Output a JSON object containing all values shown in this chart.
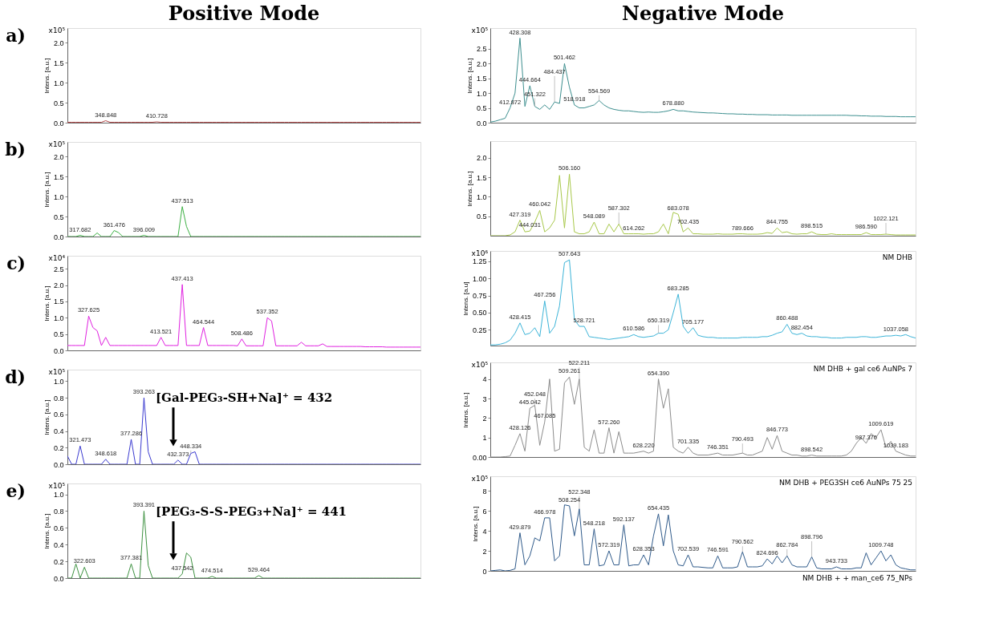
{
  "chart_data": [
    {
      "type": "line",
      "title": "Positive Mode",
      "ylabel": "Intens. [a.u.]",
      "color": "#b34a4a",
      "tick_labels": "y",
      "ylim": [
        0,
        2.37
      ],
      "yticks": [
        {
          "value": 0,
          "label": "0.0"
        },
        {
          "value": 0.5,
          "label": "0.5"
        },
        {
          "value": 1,
          "label": "1.0"
        },
        {
          "value": 1.5,
          "label": "1.5"
        },
        {
          "value": 2,
          "label": "2.0"
        }
      ],
      "values": [
        0.01,
        0.01,
        0.01,
        0.01,
        0.01,
        0.01,
        0.01,
        0.01,
        0.01,
        0.05,
        0.01,
        0.01,
        0.01,
        0.01,
        0.01,
        0.01,
        0.01,
        0.01,
        0.01,
        0.01,
        0.01,
        0.02,
        0.01,
        0.01,
        0.01,
        0.01,
        0.01,
        0.01,
        0.01,
        0.01,
        0.01,
        0.01,
        0.01,
        0.01,
        0.01,
        0.01,
        0.01,
        0.01,
        0.01,
        0.01,
        0.01,
        0.01,
        0.01,
        0.01,
        0.01,
        0.01,
        0.01,
        0.01,
        0.01,
        0.01,
        0.01,
        0.01,
        0.01,
        0.01,
        0.01,
        0.01,
        0.01,
        0.01,
        0.01,
        0.01,
        0.01,
        0.01,
        0.01,
        0.01,
        0.01,
        0.01,
        0.01,
        0.01,
        0.01,
        0.01,
        0.01,
        0.01,
        0.01,
        0.01,
        0.01,
        0.01,
        0.01,
        0.01,
        0.01,
        0.01,
        0.01,
        0.01,
        0.01,
        0.01
      ],
      "categories": [
        null,
        null,
        null,
        null,
        null,
        null,
        null,
        null,
        null,
        "348.848",
        null,
        null,
        null,
        null,
        null,
        null,
        null,
        null,
        null,
        null,
        null,
        "410.728",
        null,
        null,
        null,
        null,
        null,
        null,
        null,
        null,
        null,
        null,
        null,
        null,
        null,
        null,
        null,
        null,
        null,
        null,
        null,
        null,
        null,
        null,
        null,
        null,
        null,
        null,
        null,
        null,
        null,
        null,
        null,
        null,
        null,
        null,
        null,
        null,
        null,
        null,
        null,
        null,
        null,
        null,
        null,
        null,
        null,
        null,
        null,
        null,
        null,
        null,
        null,
        null,
        null,
        null,
        null,
        null,
        null,
        null,
        null,
        null,
        null,
        null
      ],
      "annotations": [
        "a)",
        "x10⁵"
      ]
    },
    {
      "type": "line",
      "ylabel": "Intens. [a.u.]",
      "color": "#3cb043",
      "tick_labels": "y",
      "ylim": [
        0,
        2.37
      ],
      "yticks": [
        {
          "value": 0,
          "label": "0.0"
        },
        {
          "value": 0.5,
          "label": "0.5"
        },
        {
          "value": 1,
          "label": "1.0"
        },
        {
          "value": 1.5,
          "label": "1.5"
        },
        {
          "value": 2,
          "label": "2.0"
        }
      ],
      "values": [
        0,
        0,
        0,
        0.03,
        0,
        0,
        0,
        0.09,
        0,
        0,
        0,
        0.15,
        0.1,
        0,
        0,
        0,
        0,
        0,
        0.03,
        0,
        0,
        0,
        0,
        0,
        0,
        0,
        0,
        0.75,
        0.25,
        0,
        0,
        0,
        0,
        0,
        0,
        0,
        0,
        0,
        0,
        0,
        0,
        0,
        0,
        0,
        0,
        0,
        0,
        0,
        0,
        0,
        0,
        0,
        0,
        0,
        0,
        0,
        0,
        0,
        0,
        0,
        0,
        0,
        0,
        0,
        0,
        0,
        0,
        0,
        0,
        0,
        0,
        0,
        0,
        0,
        0,
        0,
        0,
        0,
        0,
        0,
        0,
        0,
        0,
        0
      ],
      "categories": [
        null,
        null,
        null,
        "317.682",
        null,
        null,
        null,
        null,
        null,
        null,
        null,
        "361.476",
        null,
        null,
        null,
        null,
        null,
        null,
        "396.009",
        null,
        null,
        null,
        null,
        null,
        null,
        null,
        null,
        "437.513",
        null,
        null,
        null,
        null,
        null,
        null,
        null,
        null,
        null,
        null,
        null,
        null,
        null,
        null,
        null,
        null,
        null,
        null,
        null,
        null,
        null,
        null,
        null,
        null,
        null,
        null,
        null,
        null,
        null,
        null,
        null,
        null,
        null,
        null,
        null,
        null,
        null,
        null,
        null,
        null,
        null,
        null,
        null,
        null,
        null,
        null,
        null,
        null,
        null,
        null,
        null,
        null,
        null,
        null,
        null,
        null
      ],
      "annotations": [
        "b)",
        "x10⁵"
      ]
    },
    {
      "type": "line",
      "ylabel": "Intens. [a.u.]",
      "color": "#e020e0",
      "tick_labels": "y",
      "ylim": [
        0,
        2.9
      ],
      "yticks": [
        {
          "value": 0,
          "label": "0.0"
        },
        {
          "value": 0.5,
          "label": "0.5"
        },
        {
          "value": 1,
          "label": "1.0"
        },
        {
          "value": 1.5,
          "label": "1.5"
        },
        {
          "value": 2,
          "label": "2.0"
        },
        {
          "value": 2.5,
          "label": "2.5"
        }
      ],
      "values": [
        0.15,
        0.15,
        0.15,
        0.15,
        0.15,
        1.05,
        0.7,
        0.6,
        0.15,
        0.4,
        0.15,
        0.15,
        0.15,
        0.15,
        0.15,
        0.15,
        0.15,
        0.15,
        0.15,
        0.15,
        0.15,
        0.15,
        0.4,
        0.15,
        0.15,
        0.15,
        0.15,
        2.02,
        0.15,
        0.15,
        0.15,
        0.15,
        0.7,
        0.15,
        0.15,
        0.15,
        0.15,
        0.15,
        0.15,
        0.15,
        0.14,
        0.35,
        0.14,
        0.14,
        0.14,
        0.14,
        0.14,
        1.0,
        0.9,
        0.14,
        0.14,
        0.14,
        0.14,
        0.14,
        0.14,
        0.25,
        0.14,
        0.14,
        0.14,
        0.14,
        0.2,
        0.12,
        0.12,
        0.12,
        0.12,
        0.12,
        0.12,
        0.12,
        0.12,
        0.12,
        0.11,
        0.11,
        0.11,
        0.11,
        0.11,
        0.1,
        0.1,
        0.1,
        0.1,
        0.1,
        0.1,
        0.1,
        0.1,
        0.1
      ],
      "categories": [
        null,
        null,
        null,
        null,
        null,
        "327.625",
        null,
        null,
        null,
        null,
        null,
        null,
        null,
        null,
        null,
        null,
        null,
        null,
        null,
        null,
        null,
        null,
        "413.521",
        null,
        null,
        null,
        null,
        "437.413",
        null,
        null,
        null,
        null,
        "464.544",
        null,
        null,
        null,
        null,
        null,
        null,
        null,
        null,
        "508.486",
        null,
        null,
        null,
        null,
        null,
        "537.352",
        null,
        null,
        null,
        null,
        null,
        null,
        null,
        null,
        null,
        null,
        null,
        null,
        null,
        null,
        null,
        null,
        null,
        null,
        null,
        null,
        null,
        null,
        null,
        null,
        null,
        null,
        null,
        null,
        null,
        null,
        null,
        null,
        null,
        null,
        null,
        null
      ],
      "annotations": [
        "c)",
        "x10⁴"
      ]
    },
    {
      "type": "line",
      "ylabel": "Intens. [a.u.]",
      "color": "#3a3ad0",
      "tick_labels": "y",
      "ylim": [
        0,
        1.14
      ],
      "yticks": [
        {
          "value": 0,
          "label": "0.0"
        },
        {
          "value": 0.2,
          "label": "0.2"
        },
        {
          "value": 0.4,
          "label": "0.4"
        },
        {
          "value": 0.6,
          "label": "0.6"
        },
        {
          "value": 0.8,
          "label": "0.8"
        },
        {
          "value": 1,
          "label": "1.0"
        }
      ],
      "values": [
        0.1,
        0,
        0,
        0.22,
        0,
        0,
        0,
        0,
        0,
        0.06,
        0,
        0,
        0,
        0,
        0,
        0.3,
        0,
        0,
        0.8,
        0.15,
        0,
        0,
        0,
        0,
        0,
        0,
        0.05,
        0,
        0,
        0.13,
        0.15,
        0,
        0,
        0,
        0,
        0,
        0,
        0,
        0,
        0,
        0,
        0,
        0,
        0,
        0,
        0,
        0,
        0,
        0,
        0,
        0,
        0,
        0,
        0,
        0,
        0,
        0,
        0,
        0,
        0,
        0,
        0,
        0,
        0,
        0,
        0,
        0,
        0,
        0,
        0,
        0,
        0,
        0,
        0,
        0,
        0,
        0,
        0,
        0,
        0,
        0,
        0,
        0,
        0
      ],
      "categories": [
        null,
        null,
        null,
        "321.473",
        null,
        null,
        null,
        null,
        null,
        "348.618",
        null,
        null,
        null,
        null,
        null,
        "377.286",
        null,
        null,
        "393.263",
        null,
        null,
        null,
        null,
        null,
        null,
        null,
        "432.373",
        null,
        null,
        "448.334",
        null,
        null,
        null,
        null,
        null,
        null,
        null,
        null,
        null,
        null,
        null,
        null,
        null,
        null,
        null,
        null,
        null,
        null,
        null,
        null,
        null,
        null,
        null,
        null,
        null,
        null,
        null,
        null,
        null,
        null,
        null,
        null,
        null,
        null,
        null,
        null,
        null,
        null,
        null,
        null,
        null,
        null,
        null,
        null,
        null,
        null,
        null,
        null,
        null,
        null,
        null,
        null,
        null,
        null
      ],
      "annotations": [
        "d)",
        "x10⁵",
        "[Gal-PEG₃-SH+Na]⁺ = 432"
      ]
    },
    {
      "type": "line",
      "ylabel": "Intens. [a.u.]",
      "color": "#3d9140",
      "tick_labels": "y",
      "ylim": [
        0,
        1.13
      ],
      "yticks": [
        {
          "value": 0,
          "label": "0.0"
        },
        {
          "value": 0.2,
          "label": "0.2"
        },
        {
          "value": 0.4,
          "label": "0.4"
        },
        {
          "value": 0.6,
          "label": "0.6"
        },
        {
          "value": 0.8,
          "label": "0.8"
        },
        {
          "value": 1,
          "label": "1.0"
        }
      ],
      "values": [
        0,
        0,
        0.17,
        0,
        0.13,
        0,
        0,
        0,
        0,
        0,
        0,
        0,
        0,
        0,
        0,
        0.17,
        0,
        0,
        0.8,
        0.15,
        0,
        0,
        0,
        0,
        0,
        0,
        0,
        0.05,
        0.3,
        0.25,
        0,
        0,
        0,
        0,
        0.02,
        0,
        0,
        0,
        0,
        0,
        0,
        0,
        0,
        0,
        0,
        0.03,
        0,
        0,
        0,
        0,
        0,
        0,
        0,
        0,
        0,
        0,
        0,
        0,
        0,
        0,
        0,
        0,
        0,
        0,
        0,
        0,
        0,
        0,
        0,
        0,
        0,
        0,
        0,
        0,
        0,
        0,
        0,
        0,
        0,
        0,
        0,
        0,
        0,
        0
      ],
      "categories": [
        null,
        null,
        null,
        null,
        "322.603",
        null,
        null,
        null,
        null,
        null,
        null,
        null,
        null,
        null,
        null,
        "377.381",
        null,
        null,
        "393.391",
        null,
        null,
        null,
        null,
        null,
        null,
        null,
        null,
        "437.542",
        null,
        null,
        null,
        null,
        null,
        null,
        "474.514",
        null,
        null,
        null,
        null,
        null,
        null,
        null,
        null,
        null,
        null,
        "529.464",
        null,
        null,
        null,
        null,
        null,
        null,
        null,
        null,
        null,
        null,
        null,
        null,
        null,
        null,
        null,
        null,
        null,
        null,
        null,
        null,
        null,
        null,
        null,
        null,
        null,
        null,
        null,
        null,
        null,
        null,
        null,
        null,
        null,
        null,
        null,
        null,
        null,
        null
      ],
      "annotations": [
        "e)",
        "x10⁵",
        "[PEG₃-S-S-PEG₃+Na]⁺ = 441"
      ]
    },
    {
      "type": "line",
      "title": "Negative Mode",
      "ylabel": "Intens. [a.u.]",
      "color": "#3d8f8f",
      "tick_labels": "y",
      "ylim": [
        0,
        3.2
      ],
      "yticks": [
        {
          "value": 0,
          "label": "0.0"
        },
        {
          "value": 0.5,
          "label": "0.5"
        },
        {
          "value": 1,
          "label": "1.0"
        },
        {
          "value": 1.5,
          "label": "1.5"
        },
        {
          "value": 2,
          "label": "2.0"
        },
        {
          "value": 2.5,
          "label": "2.5"
        }
      ],
      "values": [
        0.02,
        0.05,
        0.1,
        0.15,
        0.5,
        1.0,
        2.86,
        0.55,
        1.25,
        0.55,
        0.45,
        0.6,
        0.45,
        0.7,
        0.65,
        2.0,
        1.2,
        0.6,
        0.5,
        0.5,
        0.55,
        0.6,
        0.75,
        0.6,
        0.5,
        0.45,
        0.42,
        0.4,
        0.4,
        0.38,
        0.36,
        0.35,
        0.36,
        0.35,
        0.35,
        0.37,
        0.4,
        0.45,
        0.4,
        0.4,
        0.38,
        0.36,
        0.35,
        0.34,
        0.33,
        0.33,
        0.32,
        0.31,
        0.3,
        0.3,
        0.29,
        0.29,
        0.28,
        0.28,
        0.27,
        0.27,
        0.27,
        0.26,
        0.26,
        0.26,
        0.26,
        0.25,
        0.25,
        0.25,
        0.25,
        0.25,
        0.25,
        0.25,
        0.25,
        0.25,
        0.25,
        0.25,
        0.25,
        0.24,
        0.24,
        0.23,
        0.23,
        0.22,
        0.22,
        0.22,
        0.21,
        0.21,
        0.21,
        0.2,
        0.2,
        0.2,
        0.2
      ],
      "categories": [
        null,
        null,
        null,
        null,
        "412.872",
        null,
        "428.308",
        null,
        "444.664",
        "451.322",
        null,
        null,
        null,
        "484.437",
        null,
        "501.462",
        null,
        "518.918",
        null,
        null,
        null,
        null,
        "554.569",
        null,
        null,
        null,
        null,
        null,
        null,
        null,
        null,
        null,
        null,
        null,
        null,
        null,
        null,
        "678.880",
        null,
        null,
        null,
        null,
        null,
        null,
        null,
        null,
        null,
        null,
        null,
        null,
        null,
        null,
        null,
        null,
        null,
        null,
        null,
        null,
        null,
        null,
        null,
        null,
        null,
        null,
        null,
        null,
        null,
        null,
        null,
        null,
        null,
        null,
        null,
        null,
        null,
        null,
        null,
        null,
        null,
        null,
        null,
        null,
        null,
        null,
        null,
        null,
        null
      ],
      "annotations": [
        "x10⁵"
      ]
    },
    {
      "type": "line",
      "ylabel": "Intens. [a.u.]",
      "color": "#a8c84a",
      "tick_labels": "y",
      "ylim": [
        0,
        2.43
      ],
      "yticks": [
        {
          "value": 0.5,
          "label": "0.5"
        },
        {
          "value": 1,
          "label": "1.0"
        },
        {
          "value": 1.5,
          "label": "1.5"
        },
        {
          "value": 2,
          "label": "2.0"
        }
      ],
      "values": [
        0,
        0,
        0,
        0,
        0.02,
        0.1,
        0.4,
        0.1,
        0.12,
        0.35,
        0.65,
        0.1,
        0.2,
        0.4,
        1.55,
        0.2,
        1.58,
        0.1,
        0.05,
        0.05,
        0.1,
        0.35,
        0.05,
        0.05,
        0.3,
        0.1,
        0.3,
        0.05,
        0.05,
        0.05,
        0.05,
        0.04,
        0.05,
        0.05,
        0.1,
        0.3,
        0.05,
        0.6,
        0.55,
        0.1,
        0.2,
        0.05,
        0.05,
        0.04,
        0.04,
        0.04,
        0.05,
        0.04,
        0.04,
        0.04,
        0.05,
        0.05,
        0.04,
        0.04,
        0.04,
        0.05,
        0.08,
        0.06,
        0.2,
        0.08,
        0.1,
        0.05,
        0.04,
        0.05,
        0.05,
        0.1,
        0.04,
        0.03,
        0.03,
        0.05,
        0.03,
        0.03,
        0.03,
        0.03,
        0.03,
        0.03,
        0.08,
        0.03,
        0.03,
        0.03,
        0.04,
        0.03,
        0.02,
        0.02,
        0.02,
        0.02,
        0.02
      ],
      "categories": [
        null,
        null,
        null,
        null,
        null,
        null,
        "427.319",
        null,
        "444.031",
        null,
        "460.042",
        null,
        null,
        null,
        null,
        null,
        "506.160",
        null,
        null,
        null,
        null,
        "548.089",
        null,
        null,
        null,
        null,
        "587.302",
        null,
        null,
        "614.262",
        null,
        null,
        null,
        null,
        null,
        null,
        null,
        null,
        "683.078",
        null,
        "702.435",
        null,
        null,
        null,
        null,
        null,
        null,
        null,
        null,
        null,
        null,
        "789.666",
        null,
        null,
        null,
        null,
        null,
        null,
        "844.755",
        null,
        null,
        null,
        null,
        null,
        null,
        "898.515",
        null,
        null,
        null,
        null,
        null,
        null,
        null,
        null,
        null,
        null,
        "986.590",
        null,
        null,
        null,
        "1022.121",
        null,
        null,
        null,
        null,
        null,
        null
      ]
    },
    {
      "type": "line",
      "ylabel": "Intens. [a.u]",
      "color": "#3cb4d8",
      "tick_labels": "y",
      "ylim": [
        0.02,
        1.4
      ],
      "yticks": [
        {
          "value": 0.25,
          "label": "0.25"
        },
        {
          "value": 0.5,
          "label": "0.50"
        },
        {
          "value": 0.75,
          "label": "0.75"
        },
        {
          "value": 1,
          "label": "1.00"
        },
        {
          "value": 1.25,
          "label": "1.25"
        }
      ],
      "values": [
        0.03,
        0.03,
        0.04,
        0.06,
        0.1,
        0.2,
        0.35,
        0.18,
        0.2,
        0.28,
        0.15,
        0.67,
        0.2,
        0.3,
        0.6,
        1.23,
        1.27,
        0.4,
        0.3,
        0.3,
        0.15,
        0.14,
        0.13,
        0.12,
        0.11,
        0.12,
        0.13,
        0.14,
        0.15,
        0.18,
        0.15,
        0.14,
        0.15,
        0.16,
        0.2,
        0.2,
        0.25,
        0.5,
        0.77,
        0.3,
        0.2,
        0.28,
        0.17,
        0.15,
        0.14,
        0.14,
        0.13,
        0.13,
        0.13,
        0.13,
        0.13,
        0.14,
        0.14,
        0.14,
        0.14,
        0.15,
        0.15,
        0.17,
        0.2,
        0.22,
        0.33,
        0.2,
        0.18,
        0.2,
        0.16,
        0.15,
        0.15,
        0.14,
        0.14,
        0.13,
        0.13,
        0.13,
        0.14,
        0.14,
        0.14,
        0.15,
        0.15,
        0.14,
        0.14,
        0.15,
        0.16,
        0.16,
        0.17,
        0.16,
        0.18,
        0.15,
        0.13
      ],
      "categories": [
        null,
        null,
        null,
        null,
        null,
        null,
        "428.415",
        null,
        null,
        null,
        null,
        "467.256",
        null,
        null,
        null,
        null,
        "507.643",
        null,
        null,
        "528.721",
        null,
        null,
        null,
        null,
        null,
        null,
        null,
        null,
        null,
        "610.586",
        null,
        null,
        null,
        null,
        "650.319",
        null,
        null,
        null,
        "683.285",
        null,
        null,
        "705.177",
        null,
        null,
        null,
        null,
        null,
        null,
        null,
        null,
        null,
        null,
        null,
        null,
        null,
        null,
        null,
        null,
        null,
        null,
        "860.488",
        null,
        null,
        "882.454",
        null,
        null,
        null,
        null,
        null,
        null,
        null,
        null,
        null,
        null,
        null,
        null,
        null,
        null,
        null,
        null,
        null,
        null,
        "1037.058",
        null,
        null,
        null,
        null
      ],
      "annotations": [
        "x10⁶",
        "NM DHB"
      ]
    },
    {
      "type": "line",
      "ylabel": "Intens. [a.u.]",
      "color": "#8c8c8c",
      "tick_labels": "y",
      "ylim": [
        0,
        4.85
      ],
      "yticks": [
        {
          "value": 0,
          "label": "0.00"
        },
        1,
        2,
        3,
        4
      ],
      "values": [
        0,
        0,
        0,
        0.02,
        0.05,
        0.6,
        1.2,
        0.3,
        2.5,
        2.65,
        0.6,
        1.8,
        4.0,
        0.3,
        0.4,
        3.8,
        4.1,
        2.7,
        4.0,
        0.5,
        0.3,
        1.4,
        0.2,
        0.2,
        1.5,
        0.2,
        1.3,
        0.2,
        0.2,
        0.2,
        0.25,
        0.3,
        0.2,
        0.3,
        4.0,
        2.5,
        3.5,
        0.5,
        0.3,
        0.2,
        0.5,
        0.2,
        0.1,
        0.1,
        0.1,
        0.15,
        0.2,
        0.1,
        0.1,
        0.1,
        0.15,
        0.2,
        0.1,
        0.1,
        0.2,
        0.3,
        1.0,
        0.4,
        1.1,
        0.3,
        0.2,
        0.1,
        0.1,
        0.05,
        0.05,
        0.1,
        0.05,
        0.05,
        0.05,
        0.05,
        0.05,
        0.05,
        0.1,
        0.3,
        0.7,
        1.0,
        0.7,
        1.2,
        1.0,
        1.4,
        0.5,
        0.8,
        0.3,
        0.2,
        0.1,
        0.05,
        0.05
      ],
      "categories": [
        null,
        null,
        null,
        null,
        null,
        null,
        "428.126",
        null,
        "445.042",
        "452.048",
        null,
        "467.085",
        null,
        null,
        null,
        null,
        "509.261",
        null,
        "522.211",
        null,
        null,
        null,
        null,
        null,
        "572.260",
        null,
        null,
        null,
        null,
        null,
        null,
        "628.220",
        null,
        null,
        "654.390",
        null,
        null,
        null,
        null,
        null,
        "701.335",
        null,
        null,
        null,
        null,
        null,
        "746.351",
        null,
        null,
        null,
        null,
        "790.493",
        null,
        null,
        null,
        null,
        null,
        null,
        "846.773",
        null,
        null,
        null,
        null,
        null,
        null,
        "898.542",
        null,
        null,
        null,
        null,
        null,
        null,
        null,
        null,
        null,
        null,
        "987.376",
        null,
        null,
        "1009.619",
        null,
        null,
        "1039.183",
        null,
        null,
        null,
        null
      ],
      "annotations": [
        "x10⁵",
        "NM DHB + gal ce6 AuNPs 7"
      ]
    },
    {
      "type": "line",
      "ylabel": "Intens. [a.u.]",
      "color": "#2f5a8a",
      "tick_labels": "y",
      "ylim": [
        0,
        9.46
      ],
      "yticks": [
        0,
        2,
        4,
        6,
        8
      ],
      "values": [
        0,
        0.05,
        0.1,
        0,
        0.05,
        0.2,
        3.8,
        0.6,
        1.5,
        3.3,
        3.0,
        5.3,
        5.3,
        1.0,
        1.5,
        6.6,
        6.5,
        3.5,
        6.2,
        0.6,
        0.6,
        4.2,
        0.5,
        0.6,
        2.0,
        0.6,
        0.6,
        4.6,
        0.5,
        0.6,
        0.6,
        1.6,
        0.6,
        3.5,
        5.7,
        2.5,
        5.6,
        2.0,
        0.6,
        0.5,
        1.6,
        0.4,
        0.4,
        0.35,
        0.3,
        0.3,
        1.5,
        0.3,
        0.3,
        0.3,
        0.4,
        1.9,
        0.4,
        0.4,
        0.4,
        0.5,
        1.2,
        0.7,
        1.5,
        0.8,
        1.5,
        0.6,
        0.4,
        0.4,
        0.4,
        1.4,
        0.3,
        0.2,
        0.2,
        0.2,
        0.4,
        0.2,
        0.2,
        0.2,
        0.3,
        0.3,
        1.8,
        0.6,
        1.3,
        2.0,
        1.0,
        1.6,
        0.6,
        0.3,
        0.2,
        0.1,
        0.1
      ],
      "categories": [
        null,
        null,
        null,
        null,
        null,
        null,
        "429.879",
        null,
        null,
        null,
        null,
        "466.978",
        null,
        null,
        null,
        null,
        "508.254",
        null,
        "522.348",
        null,
        null,
        "548.218",
        null,
        null,
        "572.319",
        null,
        null,
        "592.137",
        null,
        null,
        null,
        "628.353",
        null,
        null,
        "654.435",
        null,
        null,
        null,
        null,
        null,
        "702.539",
        null,
        null,
        null,
        null,
        null,
        "746.591",
        null,
        null,
        null,
        null,
        "790.562",
        null,
        null,
        null,
        null,
        "824.696",
        null,
        null,
        null,
        "862.784",
        null,
        null,
        null,
        null,
        "898.796",
        null,
        null,
        null,
        null,
        "943.733",
        null,
        null,
        null,
        null,
        null,
        null,
        null,
        null,
        "1009.748",
        null,
        null,
        null,
        null,
        null,
        null,
        null
      ],
      "annotations": [
        "x10⁵",
        "NM DHB + PEG3SH ce6 AuNPs 75 25",
        "NM DHB + + man_ce6 75_NPs"
      ]
    }
  ]
}
